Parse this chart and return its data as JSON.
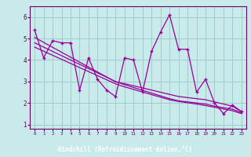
{
  "xlabel": "Windchill (Refroidissement éolien,°C)",
  "bg_color": "#c8eaea",
  "grid_color": "#a0cccc",
  "line_color": "#990099",
  "spine_color": "#660066",
  "label_bar_color": "#660066",
  "tick_color": "#660066",
  "x_data": [
    0,
    1,
    2,
    3,
    4,
    5,
    6,
    7,
    8,
    9,
    10,
    11,
    12,
    13,
    14,
    15,
    16,
    17,
    18,
    19,
    20,
    21,
    22,
    23
  ],
  "y_main": [
    5.4,
    4.1,
    4.9,
    4.8,
    4.8,
    2.6,
    4.1,
    3.1,
    2.6,
    2.3,
    4.1,
    4.0,
    2.5,
    4.4,
    5.3,
    6.1,
    4.5,
    4.5,
    2.5,
    3.1,
    2.0,
    1.5,
    1.9,
    1.6
  ],
  "y_trend1": [
    5.05,
    4.82,
    4.59,
    4.36,
    4.13,
    3.9,
    3.67,
    3.44,
    3.21,
    2.98,
    2.9,
    2.8,
    2.7,
    2.6,
    2.5,
    2.4,
    2.3,
    2.25,
    2.2,
    2.15,
    2.05,
    1.95,
    1.85,
    1.6
  ],
  "y_trend2": [
    4.8,
    4.6,
    4.4,
    4.2,
    4.0,
    3.8,
    3.6,
    3.4,
    3.2,
    3.0,
    2.85,
    2.72,
    2.59,
    2.46,
    2.33,
    2.2,
    2.1,
    2.05,
    2.0,
    1.95,
    1.85,
    1.78,
    1.71,
    1.55
  ],
  "y_trend3": [
    4.6,
    4.41,
    4.22,
    4.03,
    3.84,
    3.65,
    3.46,
    3.27,
    3.08,
    2.89,
    2.75,
    2.63,
    2.51,
    2.39,
    2.27,
    2.15,
    2.07,
    2.01,
    1.95,
    1.88,
    1.8,
    1.72,
    1.64,
    1.5
  ],
  "ylim": [
    0.8,
    6.5
  ],
  "xlim": [
    -0.5,
    23.5
  ],
  "yticks": [
    1,
    2,
    3,
    4,
    5,
    6
  ]
}
